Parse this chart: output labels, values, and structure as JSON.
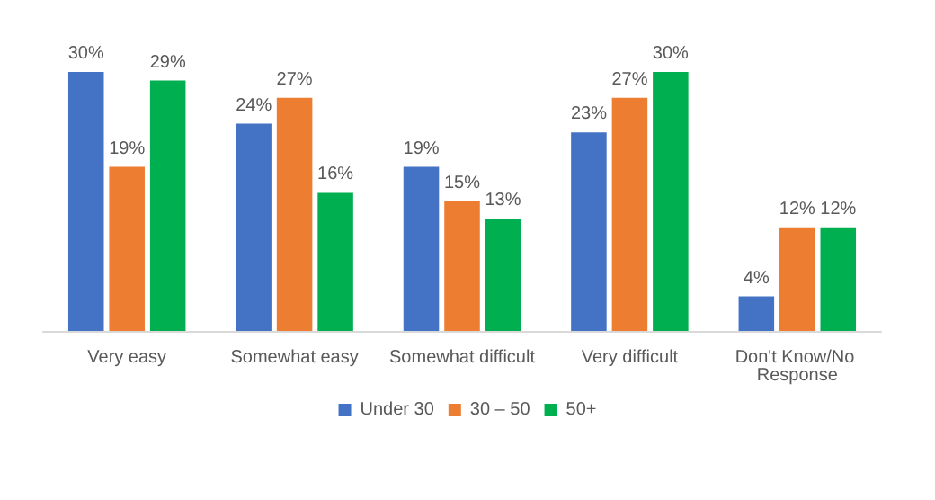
{
  "chart_data": {
    "type": "bar",
    "categories": [
      "Very easy",
      "Somewhat easy",
      "Somewhat difficult",
      "Very difficult",
      "Don't Know/No Response"
    ],
    "series": [
      {
        "name": "Under 30",
        "color": "#4472c4",
        "values": [
          30,
          24,
          19,
          23,
          4
        ],
        "value_labels": [
          "30%",
          "24%",
          "19%",
          "23%",
          "4%"
        ]
      },
      {
        "name": "30 – 50",
        "color": "#ed7d31",
        "values": [
          19,
          27,
          15,
          27,
          12
        ],
        "value_labels": [
          "19%",
          "27%",
          "15%",
          "27%",
          "12%"
        ]
      },
      {
        "name": "50+",
        "color": "#00b050",
        "values": [
          29,
          16,
          13,
          30,
          12
        ],
        "value_labels": [
          "29%",
          "16%",
          "13%",
          "30%",
          "12%"
        ]
      }
    ],
    "legend": "bottom"
  }
}
